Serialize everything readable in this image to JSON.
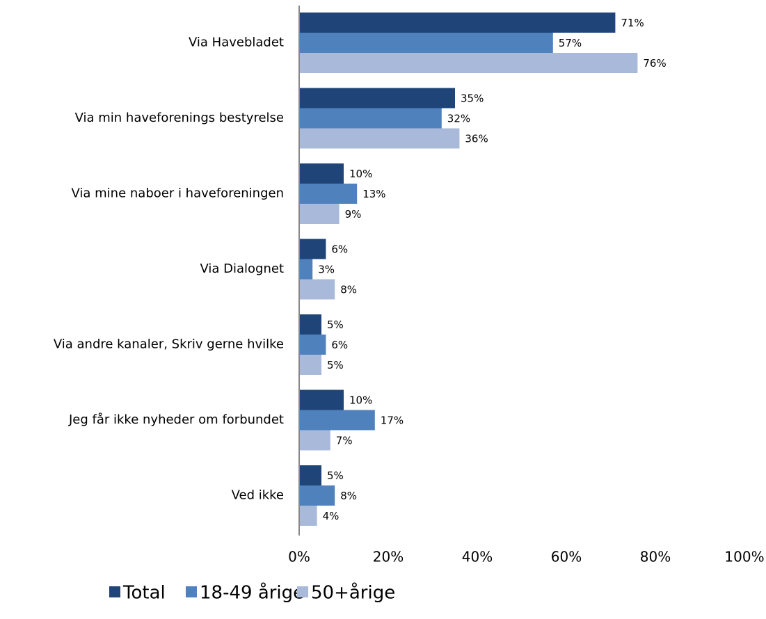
{
  "chart_data": {
    "type": "bar",
    "orientation": "horizontal",
    "categories": [
      "Via Havebladet",
      "Via min haveforenings bestyrelse",
      "Via mine naboer i haveforeningen",
      "Via Dialognet",
      "Via andre kanaler, Skriv gerne hvilke",
      "Jeg får ikke nyheder om forbundet",
      "Ved ikke"
    ],
    "series": [
      {
        "name": "Total",
        "color": "#1f4478",
        "values": [
          71,
          35,
          10,
          6,
          5,
          10,
          5
        ],
        "value_labels": [
          "71%",
          "35%",
          "10%",
          "6%",
          "5%",
          "10%",
          "5%"
        ]
      },
      {
        "name": "18-49 årige",
        "color": "#4f81bd",
        "values": [
          57,
          32,
          13,
          3,
          6,
          17,
          8
        ],
        "value_labels": [
          "57%",
          "32%",
          "13%",
          "3%",
          "6%",
          "17%",
          "8%"
        ]
      },
      {
        "name": "50+årige",
        "color": "#a9b9d9",
        "values": [
          76,
          36,
          9,
          8,
          5,
          7,
          4
        ],
        "value_labels": [
          "76%",
          "36%",
          "9%",
          "8%",
          "5%",
          "7%",
          "4%"
        ]
      }
    ],
    "xlim": [
      0,
      100
    ],
    "xticks": [
      {
        "value": 0,
        "label": "0%"
      },
      {
        "value": 20,
        "label": "20%"
      },
      {
        "value": 40,
        "label": "40%"
      },
      {
        "value": 60,
        "label": "60%"
      },
      {
        "value": 80,
        "label": "80%"
      },
      {
        "value": 100,
        "label": "100%"
      }
    ],
    "legend": "bottom"
  }
}
